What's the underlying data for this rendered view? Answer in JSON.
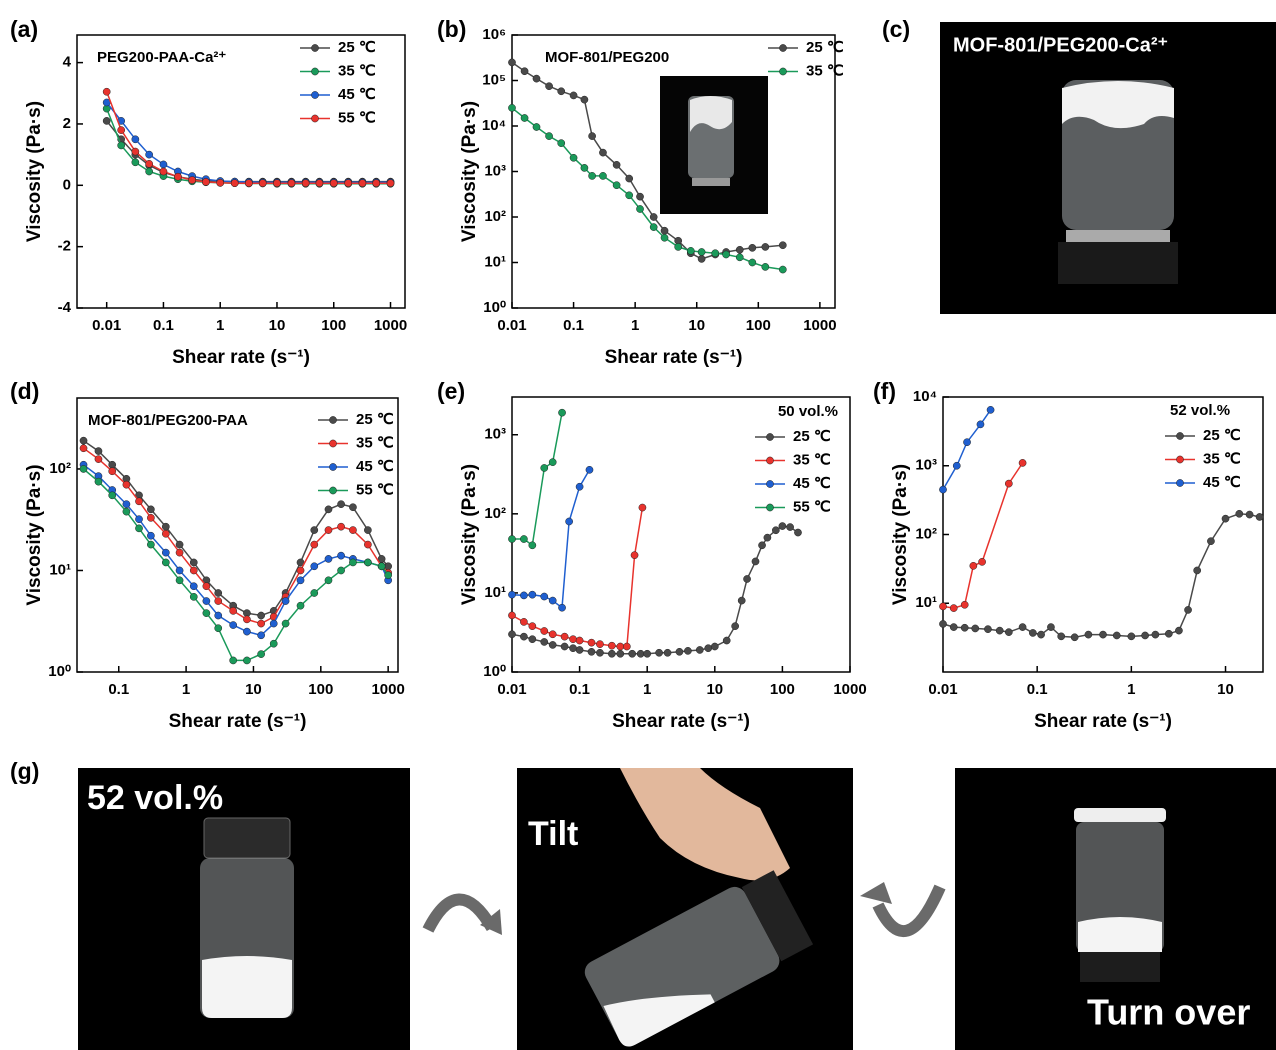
{
  "chart_data": [
    {
      "panel": "(a)",
      "type": "line",
      "title": "PEG200-PAA-Ca²⁺",
      "xlabel": "Shear rate (s⁻¹)",
      "ylabel": "Viscosity (Pa·s)",
      "xscale": "log",
      "yscale": "linear",
      "xlim": [
        0.003,
        1800
      ],
      "ylim": [
        -4,
        4.9
      ],
      "xticks": [
        0.01,
        0.1,
        1,
        10,
        100,
        1000
      ],
      "yticks": [
        -4,
        -2,
        0,
        2,
        4
      ],
      "legend": "upper right",
      "x": [
        0.01,
        0.018,
        0.032,
        0.056,
        0.1,
        0.18,
        0.32,
        0.56,
        1,
        1.8,
        3.2,
        5.6,
        10,
        18,
        32,
        56,
        100,
        180,
        320,
        560,
        1000
      ],
      "series": [
        {
          "name": "25 ℃",
          "color": "#4a4a4a",
          "values": [
            2.1,
            1.5,
            1.0,
            0.65,
            0.42,
            0.28,
            0.2,
            0.15,
            0.13,
            0.12,
            0.12,
            0.12,
            0.12,
            0.12,
            0.12,
            0.12,
            0.12,
            0.12,
            0.12,
            0.12,
            0.12
          ]
        },
        {
          "name": "35 ℃",
          "color": "#1a9a5a",
          "values": [
            2.5,
            1.3,
            0.75,
            0.45,
            0.3,
            0.2,
            0.13,
            0.1,
            0.08,
            0.07,
            0.06,
            0.06,
            0.05,
            0.05,
            0.05,
            0.05,
            0.05,
            0.05,
            0.05,
            0.05,
            0.05
          ]
        },
        {
          "name": "45 ℃",
          "color": "#1f5fd0",
          "values": [
            2.7,
            2.1,
            1.5,
            1.0,
            0.68,
            0.45,
            0.3,
            0.2,
            0.14,
            0.12,
            0.11,
            0.1,
            0.1,
            0.1,
            0.1,
            0.1,
            0.1,
            0.1,
            0.1,
            0.1,
            0.1
          ]
        },
        {
          "name": "55 ℃",
          "color": "#e8332d",
          "values": [
            3.05,
            1.8,
            1.1,
            0.7,
            0.45,
            0.28,
            0.17,
            0.11,
            0.08,
            0.07,
            0.07,
            0.07,
            0.07,
            0.07,
            0.07,
            0.07,
            0.07,
            0.07,
            0.07,
            0.07,
            0.07
          ]
        }
      ]
    },
    {
      "panel": "(b)",
      "type": "line",
      "title": "MOF-801/PEG200",
      "xlabel": "Shear rate (s⁻¹)",
      "ylabel": "Viscosity (Pa·s)",
      "xscale": "log",
      "yscale": "log",
      "xlim": [
        0.01,
        1760
      ],
      "ylim": [
        1,
        1000000
      ],
      "xticks": [
        0.01,
        0.1,
        1,
        10,
        100,
        1000
      ],
      "yticks": [
        {
          "value": 1,
          "label": "10⁰"
        },
        {
          "value": 10,
          "label": "10¹"
        },
        {
          "value": 100,
          "label": "10²"
        },
        {
          "value": 1000,
          "label": "10³"
        },
        {
          "value": 10000,
          "label": "10⁴"
        },
        {
          "value": 100000,
          "label": "10⁵"
        },
        {
          "value": 1000000,
          "label": "10⁶"
        }
      ],
      "legend": "upper right",
      "x": [
        0.01,
        0.016,
        0.025,
        0.04,
        0.063,
        0.1,
        0.15,
        0.2,
        0.3,
        0.5,
        0.8,
        1.2,
        2,
        3,
        5,
        8,
        12,
        20,
        30,
        50,
        80,
        130,
        250
      ],
      "series": [
        {
          "name": "25 ℃",
          "color": "#4a4a4a",
          "values": [
            250000,
            160000,
            110000,
            75000,
            58000,
            47000,
            38000,
            6000,
            2600,
            1400,
            700,
            280,
            100,
            50,
            30,
            16,
            12,
            15,
            17,
            19,
            21,
            22,
            24
          ]
        },
        {
          "name": "35 ℃",
          "color": "#1a9a5a",
          "values": [
            25000,
            15000,
            9500,
            6000,
            4200,
            2000,
            1200,
            800,
            800,
            500,
            300,
            150,
            60,
            35,
            22,
            18,
            17,
            16,
            15,
            13,
            10,
            8,
            7
          ]
        }
      ]
    },
    {
      "panel": "(d)",
      "type": "line",
      "title": "MOF-801/PEG200-PAA",
      "xlabel": "Shear rate (s⁻¹)",
      "ylabel": "Viscosity (Pa·s)",
      "xscale": "log",
      "yscale": "log",
      "xlim": [
        0.024,
        1400
      ],
      "ylim": [
        1,
        500
      ],
      "xticks": [
        0.1,
        1,
        10,
        100,
        1000
      ],
      "yticks": [
        {
          "value": 1,
          "label": "10⁰"
        },
        {
          "value": 10,
          "label": "10¹"
        },
        {
          "value": 100,
          "label": "10²"
        }
      ],
      "legend": "upper right",
      "x": [
        0.03,
        0.05,
        0.08,
        0.13,
        0.2,
        0.3,
        0.5,
        0.8,
        1.3,
        2,
        3,
        5,
        8,
        13,
        20,
        30,
        50,
        80,
        130,
        200,
        300,
        500,
        800,
        1000
      ],
      "series": [
        {
          "name": "25 ℃",
          "color": "#4a4a4a",
          "values": [
            190,
            150,
            110,
            80,
            55,
            40,
            27,
            18,
            12,
            8,
            6,
            4.5,
            3.8,
            3.6,
            4,
            6,
            12,
            25,
            40,
            45,
            42,
            25,
            13,
            11
          ]
        },
        {
          "name": "35 ℃",
          "color": "#e8332d",
          "values": [
            160,
            125,
            95,
            70,
            48,
            33,
            23,
            15,
            10,
            7,
            5,
            4,
            3.3,
            3,
            3.5,
            5.5,
            10,
            18,
            25,
            27,
            25,
            18,
            11,
            9.5
          ]
        },
        {
          "name": "45 ℃",
          "color": "#1f5fd0",
          "values": [
            110,
            85,
            62,
            45,
            32,
            22,
            15,
            10,
            7,
            5,
            3.6,
            2.9,
            2.5,
            2.3,
            3,
            5,
            8,
            11,
            13,
            14,
            13,
            12,
            11,
            8
          ]
        },
        {
          "name": "55 ℃",
          "color": "#1a9a5a",
          "values": [
            100,
            75,
            55,
            38,
            26,
            18,
            12,
            8,
            5.5,
            3.8,
            2.7,
            1.3,
            1.3,
            1.5,
            1.9,
            3,
            4.5,
            6,
            8,
            10,
            12,
            12,
            11,
            9
          ]
        }
      ]
    },
    {
      "panel": "(e)",
      "type": "line",
      "title": "50 vol.%",
      "xlabel": "Shear rate (s⁻¹)",
      "ylabel": "Viscosity (Pa·s)",
      "xscale": "log",
      "yscale": "log",
      "xlim": [
        0.01,
        1000
      ],
      "ylim": [
        1,
        3000
      ],
      "xticks": [
        0.01,
        0.1,
        1,
        10,
        100,
        1000
      ],
      "yticks": [
        {
          "value": 1,
          "label": "10⁰"
        },
        {
          "value": 10,
          "label": "10¹"
        },
        {
          "value": 100,
          "label": "10²"
        },
        {
          "value": 1000,
          "label": "10³"
        }
      ],
      "legend": "upper right",
      "series": [
        {
          "name": "25 ℃",
          "color": "#4a4a4a",
          "x": [
            0.01,
            0.015,
            0.02,
            0.03,
            0.04,
            0.06,
            0.08,
            0.1,
            0.15,
            0.2,
            0.3,
            0.4,
            0.6,
            0.8,
            1,
            1.5,
            2,
            3,
            4,
            6,
            8,
            10,
            15,
            20,
            25,
            30,
            40,
            50,
            60,
            80,
            100,
            130,
            170
          ],
          "values": [
            3,
            2.8,
            2.6,
            2.4,
            2.2,
            2.1,
            2,
            1.9,
            1.8,
            1.75,
            1.7,
            1.7,
            1.7,
            1.7,
            1.7,
            1.75,
            1.75,
            1.8,
            1.85,
            1.9,
            2,
            2.1,
            2.5,
            3.8,
            8,
            15,
            25,
            40,
            50,
            62,
            70,
            68,
            58
          ]
        },
        {
          "name": "35 ℃",
          "color": "#e8332d",
          "x": [
            0.01,
            0.015,
            0.02,
            0.03,
            0.04,
            0.06,
            0.08,
            0.1,
            0.15,
            0.2,
            0.3,
            0.4,
            0.5,
            0.65,
            0.85
          ],
          "values": [
            5.2,
            4.3,
            3.8,
            3.3,
            3,
            2.8,
            2.6,
            2.5,
            2.35,
            2.25,
            2.15,
            2.1,
            2.1,
            30,
            120
          ]
        },
        {
          "name": "45 ℃",
          "color": "#1f5fd0",
          "x": [
            0.01,
            0.015,
            0.02,
            0.03,
            0.04,
            0.055,
            0.07,
            0.1,
            0.14
          ],
          "values": [
            9.5,
            9.3,
            9.5,
            9,
            8,
            6.5,
            80,
            220,
            360
          ]
        },
        {
          "name": "55 ℃",
          "color": "#1a9a5a",
          "x": [
            0.01,
            0.015,
            0.02,
            0.03,
            0.04,
            0.055
          ],
          "values": [
            48,
            48,
            40,
            380,
            450,
            1900
          ]
        }
      ]
    },
    {
      "panel": "(f)",
      "type": "line",
      "title": "52 vol.%",
      "xlabel": "Shear rate (s⁻¹)",
      "ylabel": "Viscosity (Pa·s)",
      "xscale": "log",
      "yscale": "log",
      "xlim": [
        0.01,
        25
      ],
      "ylim": [
        1,
        10000
      ],
      "xticks": [
        0.01,
        0.1,
        1,
        10
      ],
      "yticks": [
        {
          "value": 10,
          "label": "10¹"
        },
        {
          "value": 100,
          "label": "10²"
        },
        {
          "value": 1000,
          "label": "10³"
        },
        {
          "value": 10000,
          "label": "10⁴"
        }
      ],
      "legend": "upper right",
      "series": [
        {
          "name": "25 ℃",
          "color": "#4a4a4a",
          "x": [
            0.01,
            0.013,
            0.017,
            0.022,
            0.03,
            0.04,
            0.05,
            0.07,
            0.09,
            0.11,
            0.14,
            0.18,
            0.25,
            0.35,
            0.5,
            0.7,
            1,
            1.4,
            1.8,
            2.5,
            3.2,
            4,
            5,
            7,
            10,
            14,
            18,
            23
          ],
          "values": [
            5,
            4.5,
            4.4,
            4.3,
            4.2,
            4,
            3.8,
            4.5,
            3.7,
            3.5,
            4.5,
            3.3,
            3.2,
            3.5,
            3.5,
            3.4,
            3.3,
            3.4,
            3.5,
            3.6,
            4,
            8,
            30,
            80,
            170,
            200,
            195,
            180
          ]
        },
        {
          "name": "35 ℃",
          "color": "#e8332d",
          "x": [
            0.01,
            0.013,
            0.017,
            0.021,
            0.026,
            0.05,
            0.07
          ],
          "values": [
            9,
            8.5,
            9.5,
            35,
            40,
            550,
            1100
          ]
        },
        {
          "name": "45 ℃",
          "color": "#1f5fd0",
          "x": [
            0.01,
            0.014,
            0.018,
            0.025,
            0.032
          ],
          "values": [
            450,
            1000,
            2200,
            4000,
            6500
          ]
        }
      ]
    }
  ],
  "photos": [
    {
      "panel": "(c)",
      "caption": "MOF-801/PEG200-Ca²⁺"
    },
    {
      "panel": "(g)",
      "caption": "52 vol.%"
    },
    {
      "caption": "Tilt"
    },
    {
      "caption": "Turn over"
    }
  ]
}
